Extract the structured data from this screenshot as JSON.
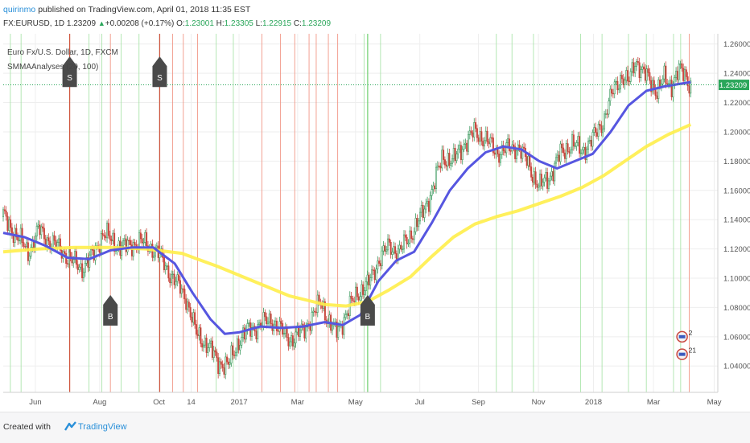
{
  "header": {
    "author": "quirinmo",
    "published_text": " published on TradingView.com, April 01, 2018 11:35 EST",
    "symbol_text": "FX:EURUSD, 1D",
    "last": "1.23209",
    "change": "+0.00208 (+0.17%)",
    "o_label": "O:",
    "o_val": "1.23001",
    "h_label": "H:",
    "h_val": "1.23305",
    "l_label": "L:",
    "l_val": "1.22915",
    "c_label": "C:",
    "c_val": "1.23209"
  },
  "legend": {
    "instrument": "Euro Fx/U.S. Dollar, 1D, FXCM",
    "indicator": "SMMAAnalyses (20, 100)"
  },
  "footer": {
    "created_with": "Created with",
    "brand": "TradingView"
  },
  "chart_data": {
    "type": "candlestick",
    "symbol": "FX:EURUSD",
    "price_label": "1.23209",
    "price_line": 1.23209,
    "ylim": [
      1.022,
      1.267
    ],
    "y_ticks": [
      "1.26000",
      "1.24000",
      "1.22000",
      "1.20000",
      "1.18000",
      "1.16000",
      "1.14000",
      "1.12000",
      "1.10000",
      "1.08000",
      "1.06000",
      "1.04000"
    ],
    "y_tick_values": [
      1.26,
      1.24,
      1.22,
      1.2,
      1.18,
      1.16,
      1.14,
      1.12,
      1.1,
      1.08,
      1.06,
      1.04
    ],
    "x_ticks": [
      {
        "label": "Jun",
        "t": 0.045
      },
      {
        "label": "Aug",
        "t": 0.135
      },
      {
        "label": "Oct",
        "t": 0.218
      },
      {
        "label": "14",
        "t": 0.263
      },
      {
        "label": "2017",
        "t": 0.33
      },
      {
        "label": "Mar",
        "t": 0.412
      },
      {
        "label": "May",
        "t": 0.493
      },
      {
        "label": "Jul",
        "t": 0.583
      },
      {
        "label": "Sep",
        "t": 0.665
      },
      {
        "label": "Nov",
        "t": 0.749
      },
      {
        "label": "2018",
        "t": 0.826
      },
      {
        "label": "Mar",
        "t": 0.91
      },
      {
        "label": "May",
        "t": 0.995
      }
    ],
    "price_path": [
      [
        0.0,
        1.142
      ],
      [
        0.02,
        1.128
      ],
      [
        0.035,
        1.118
      ],
      [
        0.05,
        1.133
      ],
      [
        0.065,
        1.125
      ],
      [
        0.08,
        1.12
      ],
      [
        0.095,
        1.112
      ],
      [
        0.11,
        1.107
      ],
      [
        0.125,
        1.115
      ],
      [
        0.14,
        1.131
      ],
      [
        0.155,
        1.124
      ],
      [
        0.17,
        1.121
      ],
      [
        0.19,
        1.125
      ],
      [
        0.205,
        1.122
      ],
      [
        0.215,
        1.118
      ],
      [
        0.225,
        1.11
      ],
      [
        0.24,
        1.098
      ],
      [
        0.255,
        1.088
      ],
      [
        0.27,
        1.062
      ],
      [
        0.285,
        1.055
      ],
      [
        0.3,
        1.043
      ],
      [
        0.315,
        1.04
      ],
      [
        0.33,
        1.058
      ],
      [
        0.345,
        1.065
      ],
      [
        0.36,
        1.068
      ],
      [
        0.375,
        1.072
      ],
      [
        0.39,
        1.063
      ],
      [
        0.405,
        1.058
      ],
      [
        0.42,
        1.065
      ],
      [
        0.435,
        1.075
      ],
      [
        0.445,
        1.085
      ],
      [
        0.455,
        1.07
      ],
      [
        0.465,
        1.063
      ],
      [
        0.48,
        1.075
      ],
      [
        0.495,
        1.09
      ],
      [
        0.51,
        1.095
      ],
      [
        0.525,
        1.112
      ],
      [
        0.54,
        1.122
      ],
      [
        0.555,
        1.118
      ],
      [
        0.57,
        1.13
      ],
      [
        0.585,
        1.142
      ],
      [
        0.6,
        1.16
      ],
      [
        0.615,
        1.183
      ],
      [
        0.63,
        1.18
      ],
      [
        0.645,
        1.192
      ],
      [
        0.66,
        1.2
      ],
      [
        0.675,
        1.195
      ],
      [
        0.69,
        1.186
      ],
      [
        0.705,
        1.188
      ],
      [
        0.72,
        1.19
      ],
      [
        0.735,
        1.178
      ],
      [
        0.75,
        1.162
      ],
      [
        0.765,
        1.17
      ],
      [
        0.78,
        1.185
      ],
      [
        0.795,
        1.192
      ],
      [
        0.81,
        1.187
      ],
      [
        0.825,
        1.195
      ],
      [
        0.84,
        1.208
      ],
      [
        0.855,
        1.23
      ],
      [
        0.865,
        1.238
      ],
      [
        0.875,
        1.233
      ],
      [
        0.885,
        1.25
      ],
      [
        0.895,
        1.24
      ],
      [
        0.905,
        1.235
      ],
      [
        0.915,
        1.228
      ],
      [
        0.925,
        1.236
      ],
      [
        0.935,
        1.232
      ],
      [
        0.945,
        1.242
      ],
      [
        0.955,
        1.238
      ],
      [
        0.962,
        1.232
      ]
    ],
    "smma20_path": [
      [
        0.0,
        1.131
      ],
      [
        0.03,
        1.128
      ],
      [
        0.06,
        1.122
      ],
      [
        0.09,
        1.114
      ],
      [
        0.12,
        1.113
      ],
      [
        0.15,
        1.119
      ],
      [
        0.18,
        1.121
      ],
      [
        0.21,
        1.121
      ],
      [
        0.24,
        1.11
      ],
      [
        0.265,
        1.09
      ],
      [
        0.29,
        1.072
      ],
      [
        0.31,
        1.062
      ],
      [
        0.33,
        1.063
      ],
      [
        0.36,
        1.067
      ],
      [
        0.39,
        1.066
      ],
      [
        0.42,
        1.067
      ],
      [
        0.45,
        1.07
      ],
      [
        0.475,
        1.068
      ],
      [
        0.5,
        1.075
      ],
      [
        0.525,
        1.098
      ],
      [
        0.55,
        1.112
      ],
      [
        0.575,
        1.118
      ],
      [
        0.6,
        1.138
      ],
      [
        0.625,
        1.16
      ],
      [
        0.65,
        1.175
      ],
      [
        0.675,
        1.186
      ],
      [
        0.7,
        1.19
      ],
      [
        0.725,
        1.188
      ],
      [
        0.75,
        1.18
      ],
      [
        0.775,
        1.175
      ],
      [
        0.8,
        1.18
      ],
      [
        0.825,
        1.185
      ],
      [
        0.85,
        1.2
      ],
      [
        0.875,
        1.218
      ],
      [
        0.9,
        1.228
      ],
      [
        0.925,
        1.231
      ],
      [
        0.95,
        1.233
      ],
      [
        0.962,
        1.234
      ]
    ],
    "smma100_path": [
      [
        0.0,
        1.118
      ],
      [
        0.05,
        1.12
      ],
      [
        0.1,
        1.121
      ],
      [
        0.15,
        1.121
      ],
      [
        0.2,
        1.12
      ],
      [
        0.25,
        1.117
      ],
      [
        0.3,
        1.108
      ],
      [
        0.35,
        1.098
      ],
      [
        0.4,
        1.088
      ],
      [
        0.45,
        1.082
      ],
      [
        0.48,
        1.081
      ],
      [
        0.51,
        1.084
      ],
      [
        0.54,
        1.092
      ],
      [
        0.57,
        1.101
      ],
      [
        0.6,
        1.115
      ],
      [
        0.63,
        1.128
      ],
      [
        0.66,
        1.137
      ],
      [
        0.69,
        1.142
      ],
      [
        0.72,
        1.146
      ],
      [
        0.75,
        1.151
      ],
      [
        0.78,
        1.156
      ],
      [
        0.81,
        1.162
      ],
      [
        0.84,
        1.17
      ],
      [
        0.87,
        1.18
      ],
      [
        0.9,
        1.19
      ],
      [
        0.93,
        1.198
      ],
      [
        0.962,
        1.205
      ]
    ],
    "red_vlines": [
      0.093,
      0.15,
      0.219,
      0.237,
      0.252,
      0.272,
      0.362,
      0.388,
      0.408,
      0.428,
      0.438,
      0.455,
      0.468,
      0.96
    ],
    "green_vlines": [
      0.01,
      0.025,
      0.12,
      0.138,
      0.165,
      0.19,
      0.298,
      0.322,
      0.505,
      0.528,
      0.69,
      0.712,
      0.742,
      0.808,
      0.838,
      0.875,
      0.9,
      0.938,
      0.948
    ],
    "signals": [
      {
        "type": "S",
        "t": 0.093,
        "y": 1.246
      },
      {
        "type": "S",
        "t": 0.219,
        "y": 1.246
      },
      {
        "type": "B",
        "t": 0.15,
        "y": 1.083
      },
      {
        "type": "B",
        "t": 0.51,
        "y": 1.083
      }
    ],
    "markers": [
      {
        "label": "2",
        "t": 0.95,
        "y": 1.06
      },
      {
        "label": "21",
        "t": 0.95,
        "y": 1.048
      }
    ]
  }
}
